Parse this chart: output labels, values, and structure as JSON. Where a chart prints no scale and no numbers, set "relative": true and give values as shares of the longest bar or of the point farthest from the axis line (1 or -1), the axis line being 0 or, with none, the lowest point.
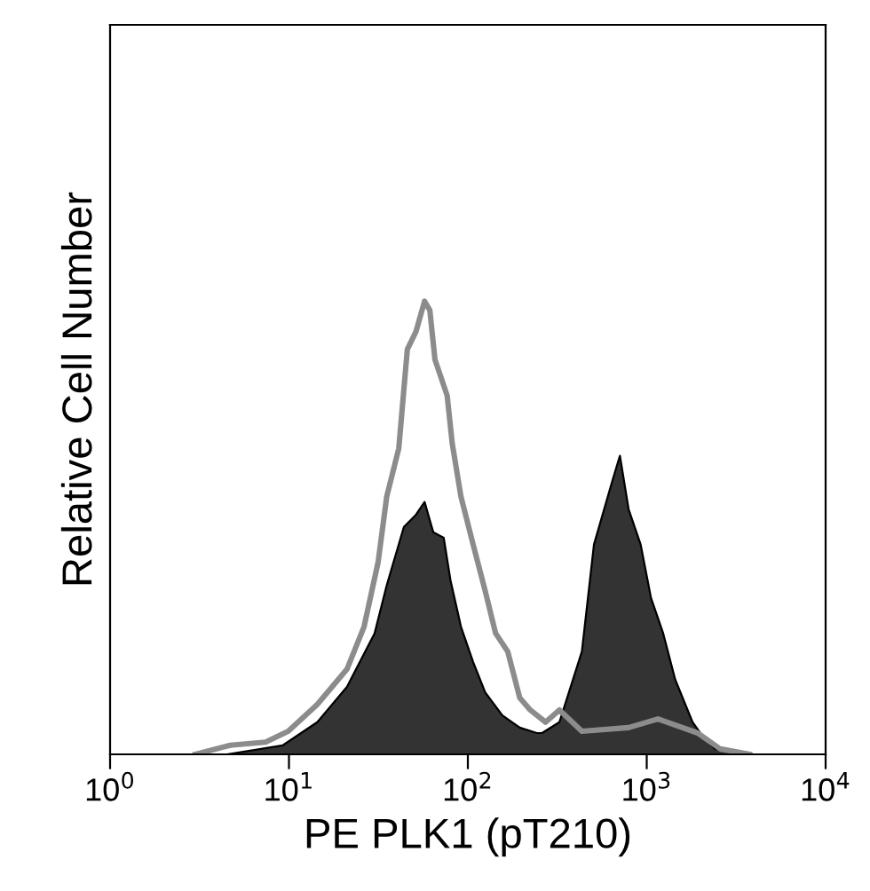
{
  "chart_data": {
    "type": "area",
    "relative": true,
    "xlabel": "PE PLK1 (pT210)",
    "ylabel": "Relative Cell Number",
    "log": "x",
    "xlim": [
      1,
      10000
    ],
    "xticks": [
      {
        "value": 1,
        "label": "10$^{0}$"
      },
      {
        "value": 10,
        "label": "10$^{1}$"
      },
      {
        "value": 100,
        "label": "10$^{2}$"
      },
      {
        "value": 1000,
        "label": "10$^{3}$"
      },
      {
        "value": 10000,
        "label": "10$^{4}$"
      }
    ],
    "grid": false,
    "legend": false,
    "series": [
      {
        "color": "#333333",
        "x": [
          4.5,
          9.25,
          14.4,
          21.1,
          30.1,
          35.2,
          43.9,
          51.3,
          57.3,
          64.1,
          73.3,
          80.0,
          91.5,
          107,
          125,
          156,
          195,
          243,
          260,
          325,
          434,
          507,
          634,
          708,
          792,
          925,
          1057,
          1236,
          1443,
          1804,
          2062,
          2409,
          3008,
          3200
        ],
        "values": [
          0,
          0.02,
          0.071,
          0.149,
          0.267,
          0.373,
          0.502,
          0.529,
          0.557,
          0.49,
          0.478,
          0.384,
          0.282,
          0.204,
          0.137,
          0.086,
          0.059,
          0.047,
          0.047,
          0.071,
          0.227,
          0.463,
          0.596,
          0.659,
          0.541,
          0.463,
          0.345,
          0.267,
          0.165,
          0.071,
          0.039,
          0.012,
          0.008,
          0
        ]
      },
      {
        "type": "line",
        "color": "#8c8c8c",
        "x": [
          3.0,
          4.7,
          7.4,
          9.9,
          14.4,
          21.1,
          26.3,
          31.5,
          35.2,
          41.1,
          45.9,
          51.3,
          57.3,
          61.3,
          65.5,
          76.6,
          81.8,
          91.5,
          107,
          125,
          143,
          167,
          195,
          223,
          272,
          325,
          434,
          792,
          1156,
          1928,
          2574,
          3757
        ],
        "values": [
          0,
          0.02,
          0.027,
          0.051,
          0.11,
          0.188,
          0.282,
          0.424,
          0.569,
          0.675,
          0.894,
          0.933,
          1,
          0.98,
          0.871,
          0.792,
          0.686,
          0.569,
          0.463,
          0.361,
          0.267,
          0.227,
          0.125,
          0.098,
          0.071,
          0.098,
          0.051,
          0.059,
          0.078,
          0.047,
          0.012,
          0
        ]
      }
    ]
  }
}
